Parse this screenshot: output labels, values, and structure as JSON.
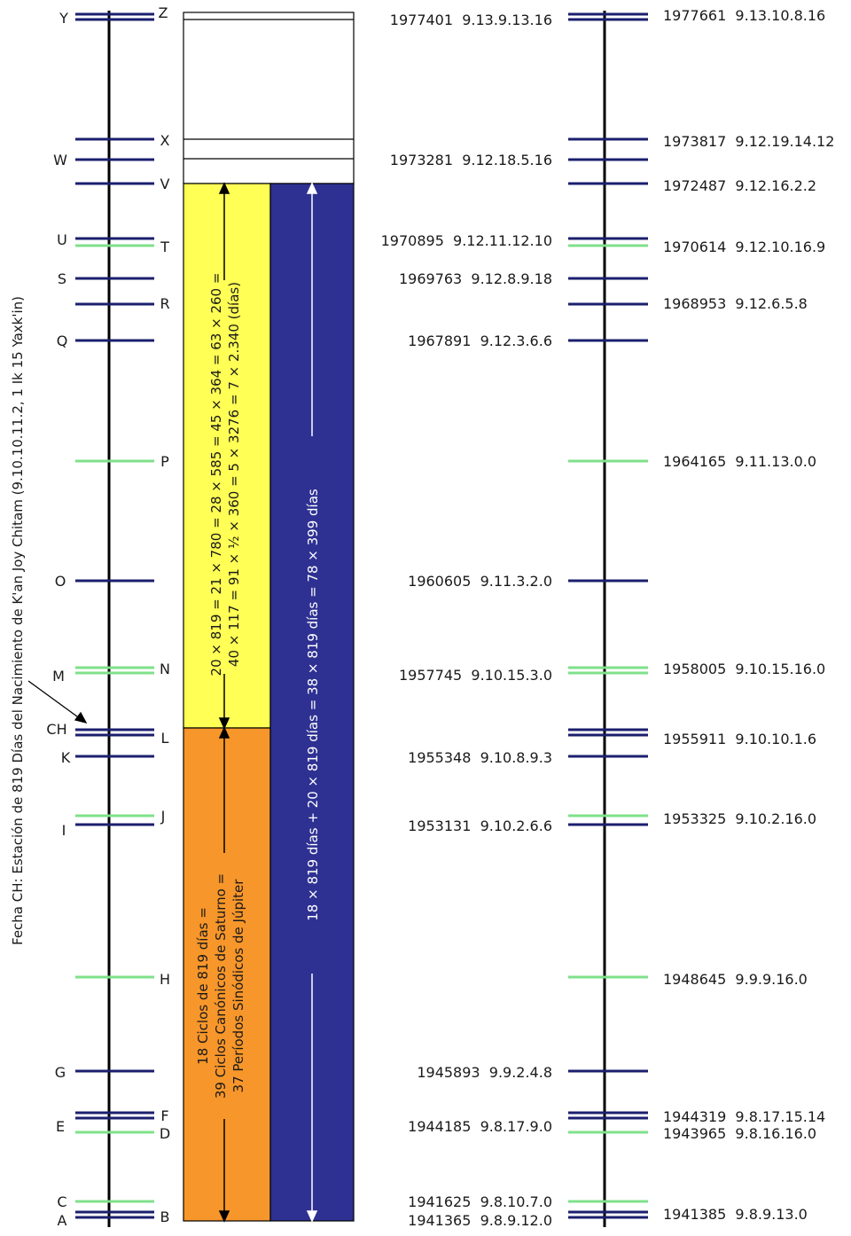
{
  "colors": {
    "navy": "#1b1f6e",
    "green": "#7fe08a",
    "yellow": "#ffff55",
    "orange": "#f7962a",
    "blue": "#2e3192",
    "axis": "#000000"
  },
  "side_title": "Fecha CH: Estación de 819 Días del Nacimiento de K'an Joy Chitam (9.10.10.11.2, 1 Ik 15 Yaxk'in)",
  "yellow_text": {
    "line1": "20 × 819 = 21 × 780 = 28 × 585 = 45 × 364 = 63 × 260 =",
    "line2": "40 × 117 = 91 × ½ × 360 = 5 × 3276 = 7 × 2.340 (días)"
  },
  "orange_text": {
    "line1": "18 Ciclos de 819 días =",
    "line2": "39 Ciclos Canónicos de Saturno =",
    "line3": "37 Períodos Sinódicos de Júpiter"
  },
  "blue_text": {
    "upper": "18 × 819 días + 20 × 819 días = 38 × 819 días = 78 × 399 días"
  },
  "left_axis_marks": [
    {
      "label": "Y",
      "color": "navy",
      "double": true
    },
    {
      "label": "Z",
      "color": "navy",
      "double": true
    },
    {
      "label": "X",
      "color": "navy",
      "double": false
    },
    {
      "label": "W",
      "color": "navy",
      "double": false
    },
    {
      "label": "V",
      "color": "navy",
      "double": false
    },
    {
      "label": "U",
      "color": "navy",
      "double": false
    },
    {
      "label": "T",
      "color": "green",
      "double": false
    },
    {
      "label": "S",
      "color": "navy",
      "double": false
    },
    {
      "label": "R",
      "color": "navy",
      "double": false
    },
    {
      "label": "Q",
      "color": "navy",
      "double": false
    },
    {
      "label": "P",
      "color": "green",
      "double": false
    },
    {
      "label": "O",
      "color": "navy",
      "double": false
    },
    {
      "label": "N",
      "color": "green",
      "double": true
    },
    {
      "label": "M",
      "color": "green",
      "double": false
    },
    {
      "label": "CH",
      "color": "navy",
      "double": false
    },
    {
      "label": "L",
      "color": "navy",
      "double": false
    },
    {
      "label": "K",
      "color": "navy",
      "double": false
    },
    {
      "label": "J",
      "color": "green",
      "double": false
    },
    {
      "label": "I",
      "color": "navy",
      "double": false
    },
    {
      "label": "H",
      "color": "green",
      "double": false
    },
    {
      "label": "G",
      "color": "navy",
      "double": false
    },
    {
      "label": "F",
      "color": "navy",
      "double": false
    },
    {
      "label": "E",
      "color": "navy",
      "double": false
    },
    {
      "label": "D",
      "color": "green",
      "double": false
    },
    {
      "label": "C",
      "color": "green",
      "double": false
    },
    {
      "label": "B",
      "color": "navy",
      "double": false
    },
    {
      "label": "A",
      "color": "navy",
      "double": false
    }
  ],
  "middle_dates": [
    "1977401  9.13.9.13.16",
    "1973281  9.12.18.5.16",
    "1970895  9.12.11.12.10",
    "1969763  9.12.8.9.18",
    "1967891  9.12.3.6.6",
    "1960605  9.11.3.2.0",
    "1957745  9.10.15.3.0",
    "1955348  9.10.8.9.3",
    "1953131  9.10.2.6.6",
    "1945893  9.9.2.4.8",
    "1944185  9.8.17.9.0",
    "1941625  9.8.10.7.0",
    "1941365  9.8.9.12.0"
  ],
  "right_dates": [
    "1977661  9.13.10.8.16",
    "1973817  9.12.19.14.12",
    "1972487  9.12.16.2.2",
    "1970614  9.12.10.16.9",
    "1968953  9.12.6.5.8",
    "1964165  9.11.13.0.0",
    "1958005  9.10.15.16.0",
    "1955911  9.10.10.1.6",
    "1953325  9.10.2.16.0",
    "1948645  9.9.9.16.0",
    "1944319  9.8.17.15.14",
    "1943965  9.8.16.16.0",
    "1941385  9.8.9.13.0"
  ]
}
